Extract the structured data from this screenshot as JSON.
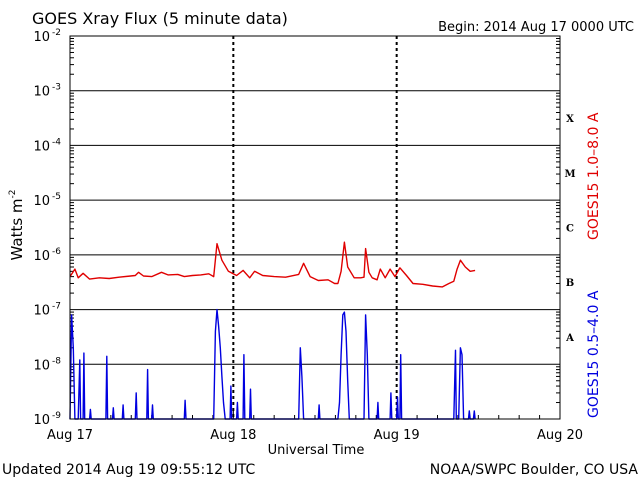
{
  "chart_data": {
    "type": "line",
    "title": "GOES Xray Flux (5 minute data)",
    "begin_label": "Begin:  2014 Aug 17 0000 UTC",
    "ylabel_main": "Watts m",
    "ylabel_sup": "-2",
    "xlabel": "Universal Time",
    "y_scale": "log",
    "ylim": [
      1e-09,
      0.01
    ],
    "xlim_days": [
      0,
      3
    ],
    "y_ticks": [
      {
        "base": "10",
        "exp": "-2"
      },
      {
        "base": "10",
        "exp": "-3"
      },
      {
        "base": "10",
        "exp": "-4"
      },
      {
        "base": "10",
        "exp": "-5"
      },
      {
        "base": "10",
        "exp": "-6"
      },
      {
        "base": "10",
        "exp": "-7"
      },
      {
        "base": "10",
        "exp": "-8"
      },
      {
        "base": "10",
        "exp": "-9"
      }
    ],
    "x_ticks": [
      "Aug 17",
      "Aug 18",
      "Aug 19",
      "Aug 20"
    ],
    "flare_classes": [
      "X",
      "M",
      "C",
      "B",
      "A"
    ],
    "grid": true,
    "series": [
      {
        "name": "GOES15 1.0–8.0 A",
        "color": "#e00000",
        "points": [
          [
            0.0,
            4e-07
          ],
          [
            0.03,
            5.5e-07
          ],
          [
            0.05,
            3.8e-07
          ],
          [
            0.08,
            4.6e-07
          ],
          [
            0.12,
            3.6e-07
          ],
          [
            0.18,
            3.8e-07
          ],
          [
            0.24,
            3.7e-07
          ],
          [
            0.3,
            3.9e-07
          ],
          [
            0.4,
            4.2e-07
          ],
          [
            0.42,
            4.8e-07
          ],
          [
            0.45,
            4.1e-07
          ],
          [
            0.5,
            4e-07
          ],
          [
            0.56,
            4.8e-07
          ],
          [
            0.6,
            4.3e-07
          ],
          [
            0.66,
            4.4e-07
          ],
          [
            0.7,
            4e-07
          ],
          [
            0.75,
            4.2e-07
          ],
          [
            0.8,
            4.3e-07
          ],
          [
            0.85,
            4.5e-07
          ],
          [
            0.88,
            4e-07
          ],
          [
            0.9,
            1.6e-06
          ],
          [
            0.93,
            8e-07
          ],
          [
            0.97,
            5e-07
          ],
          [
            1.02,
            4.2e-07
          ],
          [
            1.06,
            5.2e-07
          ],
          [
            1.1,
            3.8e-07
          ],
          [
            1.13,
            5e-07
          ],
          [
            1.18,
            4.2e-07
          ],
          [
            1.25,
            4e-07
          ],
          [
            1.32,
            3.9e-07
          ],
          [
            1.4,
            4.4e-07
          ],
          [
            1.43,
            7e-07
          ],
          [
            1.47,
            4e-07
          ],
          [
            1.52,
            3.4e-07
          ],
          [
            1.58,
            3.5e-07
          ],
          [
            1.62,
            3e-07
          ],
          [
            1.64,
            3e-07
          ],
          [
            1.66,
            5e-07
          ],
          [
            1.68,
            1.7e-06
          ],
          [
            1.7,
            6e-07
          ],
          [
            1.74,
            3.8e-07
          ],
          [
            1.78,
            3.8e-07
          ],
          [
            1.8,
            3.9e-07
          ],
          [
            1.81,
            1.3e-06
          ],
          [
            1.83,
            4.8e-07
          ],
          [
            1.85,
            3.8e-07
          ],
          [
            1.88,
            3.5e-07
          ],
          [
            1.9,
            5.5e-07
          ],
          [
            1.93,
            3.8e-07
          ],
          [
            1.96,
            5.5e-07
          ],
          [
            1.99,
            4e-07
          ],
          [
            2.02,
            5.8e-07
          ],
          [
            2.06,
            4.2e-07
          ],
          [
            2.1,
            3e-07
          ],
          [
            2.16,
            2.9e-07
          ],
          [
            2.22,
            2.7e-07
          ],
          [
            2.28,
            2.6e-07
          ],
          [
            2.32,
            3e-07
          ],
          [
            2.35,
            3.3e-07
          ],
          [
            2.37,
            5.5e-07
          ],
          [
            2.39,
            8e-07
          ],
          [
            2.42,
            6e-07
          ],
          [
            2.45,
            5e-07
          ],
          [
            2.48,
            5.2e-07
          ]
        ]
      },
      {
        "name": "GOES15 0.5–4.0 A",
        "color": "#0000e0",
        "points": [
          [
            0.0,
            1e-09
          ],
          [
            0.01,
            8e-08
          ],
          [
            0.02,
            2e-08
          ],
          [
            0.03,
            1e-09
          ],
          [
            0.05,
            1e-09
          ],
          [
            0.06,
            1.2e-08
          ],
          [
            0.065,
            1e-09
          ],
          [
            0.08,
            1e-09
          ],
          [
            0.085,
            1.6e-08
          ],
          [
            0.09,
            1e-09
          ],
          [
            0.12,
            1e-09
          ],
          [
            0.125,
            1.5e-09
          ],
          [
            0.13,
            1e-09
          ],
          [
            0.22,
            1e-09
          ],
          [
            0.225,
            1.4e-08
          ],
          [
            0.23,
            1e-09
          ],
          [
            0.26,
            1e-09
          ],
          [
            0.265,
            1.6e-09
          ],
          [
            0.27,
            1e-09
          ],
          [
            0.32,
            1e-09
          ],
          [
            0.325,
            1.8e-09
          ],
          [
            0.33,
            1e-09
          ],
          [
            0.4,
            1e-09
          ],
          [
            0.405,
            3e-09
          ],
          [
            0.41,
            1e-09
          ],
          [
            0.47,
            1e-09
          ],
          [
            0.475,
            8e-09
          ],
          [
            0.48,
            1e-09
          ],
          [
            0.5,
            1e-09
          ],
          [
            0.505,
            1.8e-09
          ],
          [
            0.51,
            1e-09
          ],
          [
            0.7,
            1e-09
          ],
          [
            0.705,
            2.2e-09
          ],
          [
            0.71,
            1e-09
          ],
          [
            0.88,
            1e-09
          ],
          [
            0.89,
            4e-08
          ],
          [
            0.9,
            1e-07
          ],
          [
            0.91,
            5e-08
          ],
          [
            0.92,
            2e-08
          ],
          [
            0.93,
            6e-09
          ],
          [
            0.94,
            2e-09
          ],
          [
            0.95,
            1e-09
          ],
          [
            0.98,
            1e-09
          ],
          [
            0.985,
            4e-09
          ],
          [
            0.99,
            1e-09
          ],
          [
            1.02,
            1e-09
          ],
          [
            1.025,
            2e-09
          ],
          [
            1.03,
            1e-09
          ],
          [
            1.06,
            1e-09
          ],
          [
            1.065,
            1.5e-08
          ],
          [
            1.07,
            1e-09
          ],
          [
            1.1,
            1e-09
          ],
          [
            1.105,
            3.5e-09
          ],
          [
            1.11,
            1e-09
          ],
          [
            1.4,
            1e-09
          ],
          [
            1.41,
            2e-08
          ],
          [
            1.42,
            6e-09
          ],
          [
            1.43,
            1e-09
          ],
          [
            1.52,
            1e-09
          ],
          [
            1.525,
            1.8e-09
          ],
          [
            1.53,
            1e-09
          ],
          [
            1.64,
            1e-09
          ],
          [
            1.65,
            2e-09
          ],
          [
            1.66,
            1.5e-08
          ],
          [
            1.67,
            8e-08
          ],
          [
            1.68,
            9e-08
          ],
          [
            1.69,
            4e-08
          ],
          [
            1.7,
            5e-09
          ],
          [
            1.71,
            1e-09
          ],
          [
            1.8,
            1e-09
          ],
          [
            1.81,
            8e-08
          ],
          [
            1.82,
            1.5e-08
          ],
          [
            1.83,
            1e-09
          ],
          [
            1.88,
            1e-09
          ],
          [
            1.885,
            2e-09
          ],
          [
            1.89,
            1e-09
          ],
          [
            1.96,
            1e-09
          ],
          [
            1.965,
            3e-09
          ],
          [
            1.97,
            1e-09
          ],
          [
            2.0,
            1e-09
          ],
          [
            2.005,
            2.5e-09
          ],
          [
            2.01,
            1e-09
          ],
          [
            2.02,
            1e-09
          ],
          [
            2.025,
            1.5e-08
          ],
          [
            2.03,
            1e-09
          ],
          [
            2.35,
            1e-09
          ],
          [
            2.36,
            1.8e-08
          ],
          [
            2.365,
            1e-09
          ],
          [
            2.38,
            1e-09
          ],
          [
            2.39,
            2e-08
          ],
          [
            2.4,
            1.5e-08
          ],
          [
            2.41,
            1e-09
          ],
          [
            2.44,
            1e-09
          ],
          [
            2.445,
            1.4e-09
          ],
          [
            2.45,
            1e-09
          ],
          [
            2.47,
            1e-09
          ],
          [
            2.475,
            1.4e-09
          ],
          [
            2.48,
            1e-09
          ]
        ]
      }
    ]
  },
  "footer": {
    "updated": "Updated 2014 Aug 19 09:55:12 UTC",
    "credit": "NOAA/SWPC Boulder, CO USA"
  }
}
